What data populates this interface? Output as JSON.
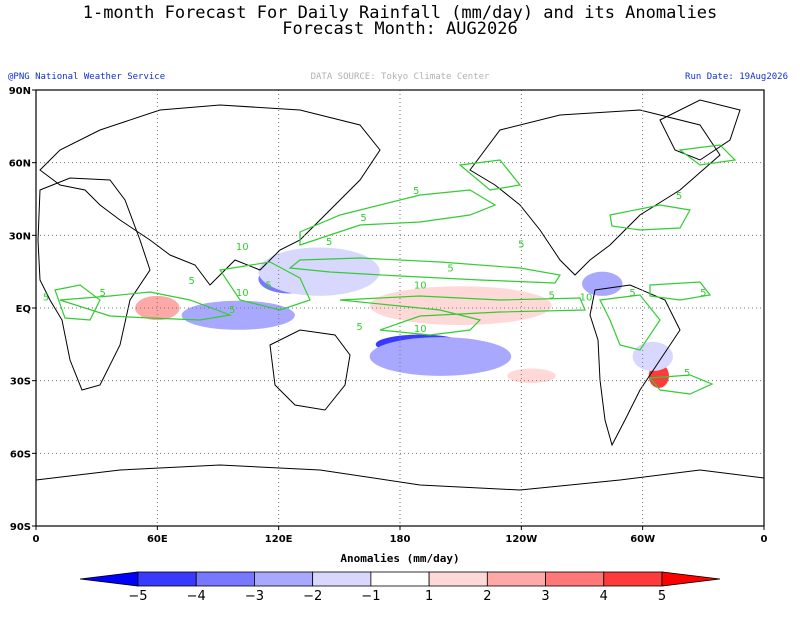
{
  "header": {
    "title_line1": "1-month Forecast For Daily Rainfall (mm/day) and its Anomalies",
    "title_line2": "Forecast Month: AUG2026",
    "credit": "@PNG National Weather Service",
    "data_source": "DATA SOURCE: Tokyo Climate Center",
    "run_date": "Run Date: 19Aug2026"
  },
  "map": {
    "lat_range": [
      -90,
      90
    ],
    "lon_range": [
      0,
      360
    ],
    "grid": "dotted",
    "lat_ticks": [
      {
        "value": 90,
        "label": "90N"
      },
      {
        "value": 60,
        "label": "60N"
      },
      {
        "value": 30,
        "label": "30N"
      },
      {
        "value": 0,
        "label": "EQ"
      },
      {
        "value": -30,
        "label": "30S"
      },
      {
        "value": -60,
        "label": "60S"
      },
      {
        "value": -90,
        "label": "90S"
      }
    ],
    "lon_ticks": [
      {
        "value": 0,
        "label": "0"
      },
      {
        "value": 60,
        "label": "60E"
      },
      {
        "value": 120,
        "label": "120E"
      },
      {
        "value": 180,
        "label": "180"
      },
      {
        "value": 240,
        "label": "120W"
      },
      {
        "value": 300,
        "label": "60W"
      },
      {
        "value": 360,
        "label": "0"
      }
    ],
    "contour_color": "#33cc33",
    "contour_labels": [
      {
        "text": "5",
        "lon": 188,
        "lat": 47
      },
      {
        "text": "5",
        "lon": 162,
        "lat": 36
      },
      {
        "text": "5",
        "lon": 145,
        "lat": 26
      },
      {
        "text": "5",
        "lon": 205,
        "lat": 15
      },
      {
        "text": "10",
        "lon": 190,
        "lat": 8
      },
      {
        "text": "5",
        "lon": 255,
        "lat": 4
      },
      {
        "text": "10",
        "lon": 272,
        "lat": 3
      },
      {
        "text": "10",
        "lon": 190,
        "lat": -10
      },
      {
        "text": "5",
        "lon": 160,
        "lat": -9
      },
      {
        "text": "5",
        "lon": 77,
        "lat": 10
      },
      {
        "text": "5",
        "lon": 97,
        "lat": -2
      },
      {
        "text": "10",
        "lon": 102,
        "lat": 5
      },
      {
        "text": "5",
        "lon": 115,
        "lat": 8
      },
      {
        "text": "10",
        "lon": 102,
        "lat": 24
      },
      {
        "text": "5",
        "lon": 240,
        "lat": 25
      },
      {
        "text": "5",
        "lon": 295,
        "lat": 5
      },
      {
        "text": "5",
        "lon": 330,
        "lat": 5
      },
      {
        "text": "5",
        "lon": 322,
        "lat": -28
      },
      {
        "text": "5",
        "lon": 318,
        "lat": 45
      },
      {
        "text": "5",
        "lon": 33,
        "lat": 5
      },
      {
        "text": "5",
        "lon": 5,
        "lat": 3
      }
    ],
    "anomaly_regions": [
      {
        "level": 5,
        "center": [
          200,
          2
        ],
        "radius": [
          30,
          4
        ]
      },
      {
        "level": 3,
        "center": [
          205,
          2
        ],
        "radius": [
          38,
          6
        ]
      },
      {
        "level": 1,
        "center": [
          210,
          1
        ],
        "radius": [
          45,
          8
        ]
      },
      {
        "level": 5,
        "center": [
          58,
          0
        ],
        "radius": [
          7,
          3
        ]
      },
      {
        "level": 2,
        "center": [
          60,
          0
        ],
        "radius": [
          11,
          5
        ]
      },
      {
        "level": -4,
        "center": [
          95,
          -5
        ],
        "radius": [
          20,
          3
        ]
      },
      {
        "level": -2,
        "center": [
          100,
          -3
        ],
        "radius": [
          28,
          6
        ]
      },
      {
        "level": -4,
        "center": [
          190,
          -15
        ],
        "radius": [
          22,
          4
        ]
      },
      {
        "level": -2,
        "center": [
          200,
          -20
        ],
        "radius": [
          35,
          8
        ]
      },
      {
        "level": -3,
        "center": [
          125,
          12
        ],
        "radius": [
          15,
          6
        ]
      },
      {
        "level": -1,
        "center": [
          140,
          15
        ],
        "radius": [
          30,
          10
        ]
      },
      {
        "level": -2,
        "center": [
          280,
          10
        ],
        "radius": [
          10,
          5
        ]
      },
      {
        "level": 4,
        "center": [
          308,
          -28
        ],
        "radius": [
          5,
          5
        ]
      },
      {
        "level": 1,
        "center": [
          245,
          -28
        ],
        "radius": [
          12,
          3
        ]
      },
      {
        "level": -1,
        "center": [
          305,
          -20
        ],
        "radius": [
          10,
          6
        ]
      }
    ]
  },
  "colorbar": {
    "label": "Anomalies (mm/day)",
    "tick_labels": [
      "-5",
      "-4",
      "-3",
      "-2",
      "-1",
      "1",
      "2",
      "3",
      "4",
      "5"
    ],
    "colors": [
      "#0000ff",
      "#3a3aff",
      "#7878ff",
      "#a8a8ff",
      "#d8d8ff",
      "#ffffff",
      "#ffd8d8",
      "#ffa8a8",
      "#ff7878",
      "#ff3a3a",
      "#ff0000"
    ]
  }
}
